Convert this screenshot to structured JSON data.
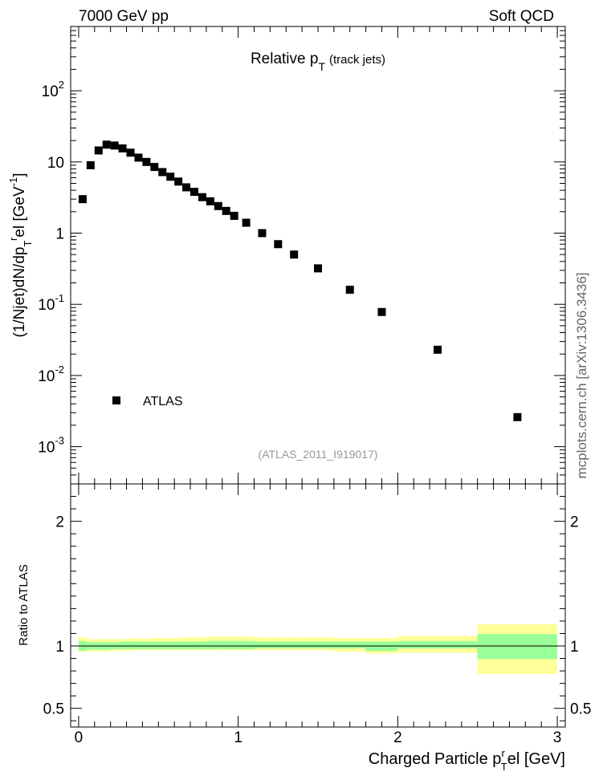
{
  "header": {
    "left": "7000 GeV pp",
    "right": "Soft QCD"
  },
  "side_label": "mcplots.cern.ch [arXiv:1306.3436]",
  "chart_data": [
    {
      "type": "scatter",
      "title": "Relative p_T (track jets)",
      "title_main": "Relative p",
      "title_sub": "T",
      "title_note": "(track jets)",
      "ylabel": "(1/Njet)dN/dp_T^rel [GeV^-1]",
      "y_scale": "log",
      "ylim": [
        0.0003,
        800
      ],
      "xlim": [
        -0.05,
        3.05
      ],
      "yticks": [
        {
          "value": 0.001,
          "base": "10",
          "exp": "-3"
        },
        {
          "value": 0.01,
          "base": "10",
          "exp": "-2"
        },
        {
          "value": 0.1,
          "base": "10",
          "exp": "-1"
        },
        {
          "value": 1,
          "base": "1",
          "exp": ""
        },
        {
          "value": 10,
          "base": "10",
          "exp": ""
        },
        {
          "value": 100,
          "base": "10",
          "exp": "2"
        }
      ],
      "legend": {
        "label": "ATLAS",
        "placement": "lower-left"
      },
      "reference": "(ATLAS_2011_I919017)",
      "series": [
        {
          "name": "ATLAS",
          "color": "#000000",
          "x": [
            0.025,
            0.075,
            0.125,
            0.175,
            0.225,
            0.275,
            0.325,
            0.375,
            0.425,
            0.475,
            0.525,
            0.575,
            0.625,
            0.675,
            0.725,
            0.775,
            0.825,
            0.875,
            0.925,
            0.975,
            1.05,
            1.15,
            1.25,
            1.35,
            1.5,
            1.7,
            1.9,
            2.25,
            2.75
          ],
          "y": [
            3.0,
            9.0,
            14.5,
            17.5,
            17.0,
            15.5,
            13.5,
            11.5,
            10.0,
            8.5,
            7.2,
            6.2,
            5.3,
            4.4,
            3.8,
            3.2,
            2.8,
            2.4,
            2.05,
            1.75,
            1.4,
            1.0,
            0.7,
            0.5,
            0.32,
            0.16,
            0.078,
            0.023,
            0.0026
          ]
        }
      ]
    },
    {
      "type": "area",
      "ylabel": "Ratio to ATLAS",
      "xlabel": "Charged Particle p_T^rel [GeV]",
      "xlabel_main": "Charged Particle p",
      "xlabel_sup": "r",
      "xlabel_sub": "T",
      "xlabel_tail": "el [GeV]",
      "xlim": [
        -0.05,
        3.05
      ],
      "ylim": [
        0.35,
        2.3
      ],
      "xticks": [
        0,
        1,
        2,
        3
      ],
      "yticks": [
        0.5,
        1,
        2
      ],
      "reference_line": 1,
      "bands": {
        "bin_edges": [
          0,
          0.05,
          0.1,
          0.15,
          0.2,
          0.25,
          0.3,
          0.35,
          0.4,
          0.45,
          0.5,
          0.55,
          0.6,
          0.65,
          0.7,
          0.75,
          0.8,
          0.85,
          0.9,
          0.95,
          1.0,
          1.1,
          1.2,
          1.3,
          1.4,
          1.6,
          1.8,
          2.0,
          2.5,
          3.0
        ],
        "stat_color": "#99ff99",
        "total_color": "#ffff99",
        "stat_low": [
          0.96,
          0.97,
          0.97,
          0.97,
          0.975,
          0.975,
          0.975,
          0.975,
          0.975,
          0.975,
          0.975,
          0.975,
          0.975,
          0.975,
          0.975,
          0.975,
          0.975,
          0.975,
          0.975,
          0.975,
          0.975,
          0.98,
          0.98,
          0.98,
          0.98,
          0.98,
          0.96,
          0.98,
          0.895
        ],
        "stat_high": [
          1.04,
          1.03,
          1.03,
          1.03,
          1.03,
          1.035,
          1.035,
          1.035,
          1.035,
          1.035,
          1.035,
          1.035,
          1.035,
          1.035,
          1.035,
          1.035,
          1.04,
          1.04,
          1.04,
          1.04,
          1.04,
          1.035,
          1.035,
          1.035,
          1.035,
          1.035,
          1.035,
          1.04,
          1.095
        ],
        "total_low": [
          0.955,
          0.955,
          0.955,
          0.955,
          0.96,
          0.96,
          0.96,
          0.965,
          0.965,
          0.965,
          0.965,
          0.965,
          0.965,
          0.965,
          0.965,
          0.965,
          0.965,
          0.965,
          0.965,
          0.965,
          0.965,
          0.965,
          0.965,
          0.965,
          0.965,
          0.955,
          0.94,
          0.945,
          0.775
        ],
        "total_high": [
          1.07,
          1.055,
          1.055,
          1.055,
          1.055,
          1.055,
          1.06,
          1.06,
          1.06,
          1.065,
          1.065,
          1.065,
          1.065,
          1.07,
          1.07,
          1.07,
          1.075,
          1.075,
          1.075,
          1.075,
          1.075,
          1.07,
          1.07,
          1.07,
          1.07,
          1.065,
          1.065,
          1.08,
          1.175
        ]
      }
    }
  ]
}
